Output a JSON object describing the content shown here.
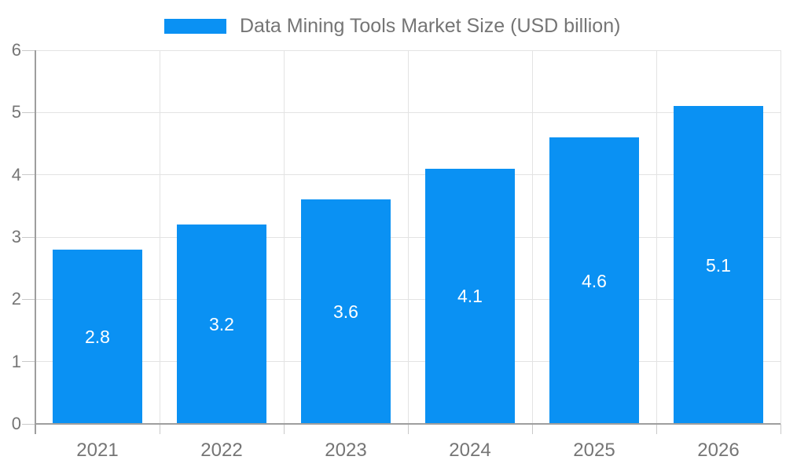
{
  "legend": {
    "series_label": "Data Mining Tools Market Size (USD billion)"
  },
  "colors": {
    "bar": "#0A91F3",
    "text": "#757575",
    "gridline": "#E3E3E3",
    "tick": "#C9C9C9",
    "axis": "#9E9E9E",
    "data_label": "#FFFFFF",
    "background": "#FFFFFF"
  },
  "chart_data": {
    "type": "bar",
    "title": "Data Mining Tools Market Size (USD billion)",
    "series_name": "Data Mining Tools Market Size (USD billion)",
    "categories": [
      "2021",
      "2022",
      "2023",
      "2024",
      "2025",
      "2026"
    ],
    "values": [
      2.8,
      3.2,
      3.6,
      4.1,
      4.6,
      5.1
    ],
    "xlabel": "",
    "ylabel": "",
    "ylim": [
      0,
      6
    ],
    "yticks": [
      0,
      1,
      2,
      3,
      4,
      5,
      6
    ],
    "grid": true,
    "legend_position": "top-center",
    "data_labels": {
      "position": "inside-center",
      "color": "#FFFFFF"
    }
  }
}
